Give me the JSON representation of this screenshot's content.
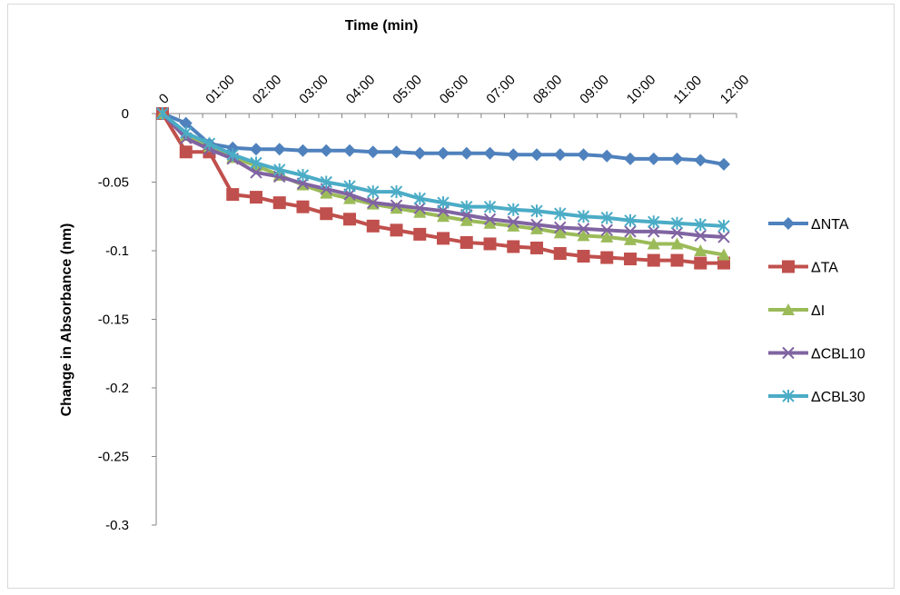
{
  "chart_data": {
    "type": "line",
    "x_label": "Time (min)",
    "y_label": "Change in Absorbance (nm)",
    "categories": [
      "0",
      null,
      "01:00",
      null,
      "02:00",
      null,
      "03:00",
      null,
      "04:00",
      null,
      "05:00",
      null,
      "06:00",
      null,
      "07:00",
      null,
      "08:00",
      null,
      "09:00",
      null,
      "10:00",
      null,
      "11:00",
      null,
      "12:00"
    ],
    "ylim": [
      -0.3,
      0
    ],
    "yticks": [
      0,
      -0.05,
      -0.1,
      -0.15,
      -0.2,
      -0.25,
      -0.3
    ],
    "legend": "right",
    "series": [
      {
        "name": "ΔNTA",
        "color": "#4F81BD",
        "marker": "diamond",
        "values": [
          0,
          -0.007,
          -0.022,
          -0.025,
          -0.026,
          -0.026,
          -0.027,
          -0.027,
          -0.027,
          -0.028,
          -0.028,
          -0.029,
          -0.029,
          -0.029,
          -0.029,
          -0.03,
          -0.03,
          -0.03,
          -0.03,
          -0.031,
          -0.033,
          -0.033,
          -0.033,
          -0.034,
          -0.037
        ]
      },
      {
        "name": "ΔTA",
        "color": "#C0504D",
        "marker": "square",
        "values": [
          0,
          -0.028,
          -0.028,
          -0.059,
          -0.061,
          -0.065,
          -0.068,
          -0.073,
          -0.077,
          -0.082,
          -0.085,
          -0.088,
          -0.091,
          -0.094,
          -0.095,
          -0.097,
          -0.098,
          -0.102,
          -0.104,
          -0.105,
          -0.106,
          -0.107,
          -0.107,
          -0.109,
          -0.109
        ]
      },
      {
        "name": "ΔI",
        "color": "#9BBB59",
        "marker": "triangle",
        "values": [
          0,
          -0.016,
          -0.024,
          -0.032,
          -0.038,
          -0.045,
          -0.052,
          -0.058,
          -0.062,
          -0.066,
          -0.069,
          -0.072,
          -0.075,
          -0.078,
          -0.08,
          -0.082,
          -0.084,
          -0.087,
          -0.089,
          -0.09,
          -0.092,
          -0.095,
          -0.095,
          -0.1,
          -0.103
        ]
      },
      {
        "name": "ΔCBL10",
        "color": "#8064A2",
        "marker": "x",
        "values": [
          0,
          -0.018,
          -0.026,
          -0.033,
          -0.043,
          -0.046,
          -0.051,
          -0.055,
          -0.059,
          -0.065,
          -0.067,
          -0.069,
          -0.071,
          -0.074,
          -0.077,
          -0.079,
          -0.081,
          -0.083,
          -0.084,
          -0.085,
          -0.086,
          -0.086,
          -0.087,
          -0.089,
          -0.09
        ]
      },
      {
        "name": "ΔCBL30",
        "color": "#4BACC6",
        "marker": "star",
        "values": [
          0,
          -0.014,
          -0.022,
          -0.03,
          -0.036,
          -0.041,
          -0.045,
          -0.05,
          -0.053,
          -0.057,
          -0.057,
          -0.062,
          -0.065,
          -0.068,
          -0.068,
          -0.07,
          -0.071,
          -0.073,
          -0.075,
          -0.076,
          -0.078,
          -0.079,
          -0.08,
          -0.081,
          -0.082
        ]
      }
    ]
  }
}
